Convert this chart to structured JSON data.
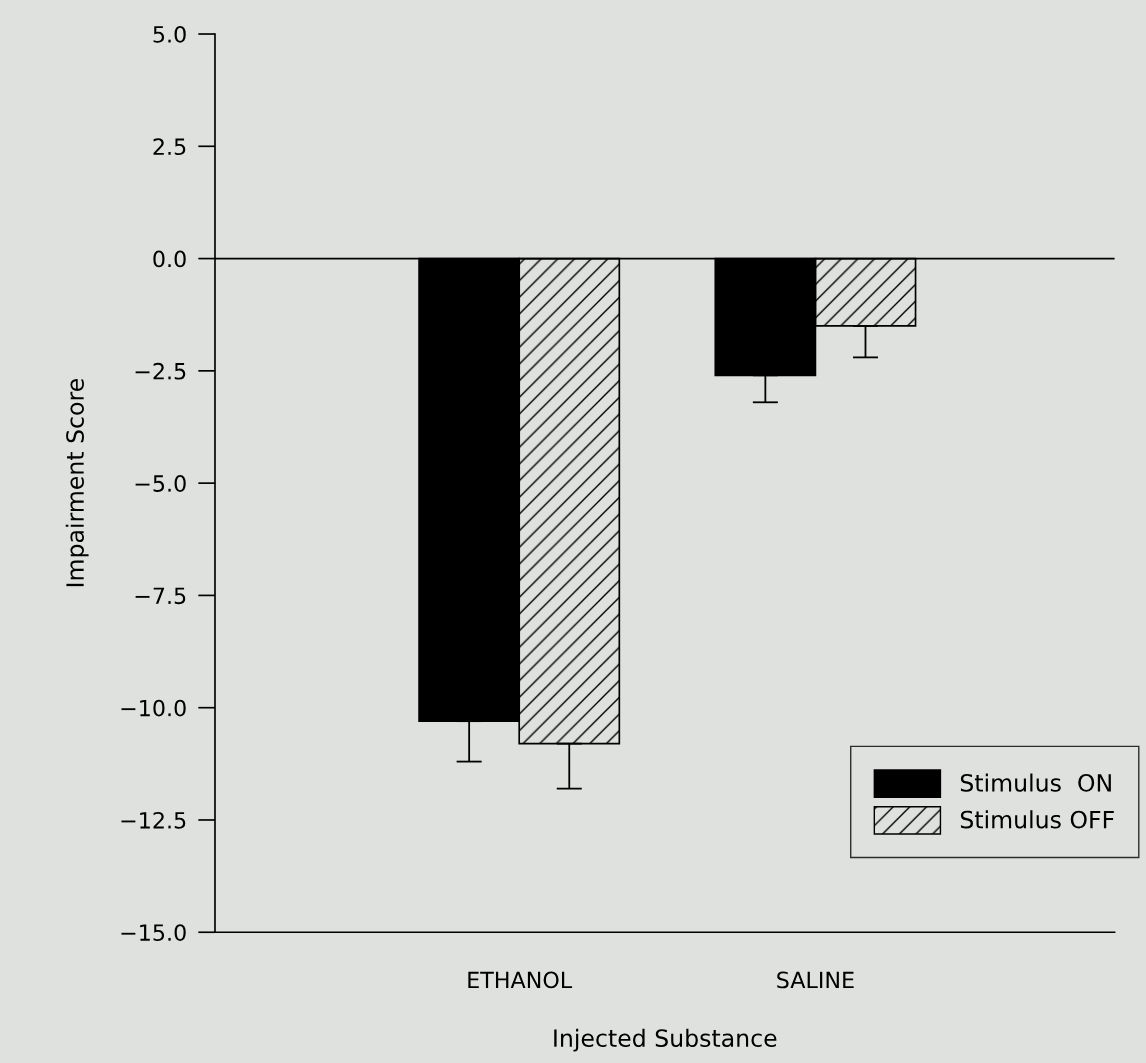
{
  "chart_data": {
    "type": "bar",
    "xlabel": "Injected Substance",
    "ylabel": "Impairment Score",
    "categories": [
      "ETHANOL",
      "SALINE"
    ],
    "series": [
      {
        "name": "Stimulus  ON",
        "color": "#000000",
        "values": [
          -10.3,
          -2.6
        ],
        "errors": [
          [
            -11.2,
            -10.3
          ],
          [
            -3.2,
            -2.6
          ]
        ]
      },
      {
        "name": "Stimulus OFF",
        "color": "#000000",
        "values": [
          -10.8,
          -1.5
        ],
        "errors": [
          [
            -11.8,
            -10.8
          ],
          [
            -2.2,
            -1.5
          ]
        ]
      }
    ],
    "ylim": [
      -15,
      5
    ],
    "yticks": [
      {
        "value": -15,
        "label": "−15.0"
      },
      {
        "value": -12.5,
        "label": "−12.5"
      },
      {
        "value": -10,
        "label": "−10.0"
      },
      {
        "value": -7.5,
        "label": "−7.5"
      },
      {
        "value": -5,
        "label": "−5.0"
      },
      {
        "value": -2.5,
        "label": "−2.5"
      },
      {
        "value": 0,
        "label": "0.0"
      },
      {
        "value": 2.5,
        "label": "2.5"
      },
      {
        "value": 5,
        "label": "5.0"
      }
    ],
    "ref_lines": [
      {
        "axis": "y",
        "value": 0,
        "color": "#000000"
      }
    ],
    "legend": "bottom right",
    "grid": false
  }
}
